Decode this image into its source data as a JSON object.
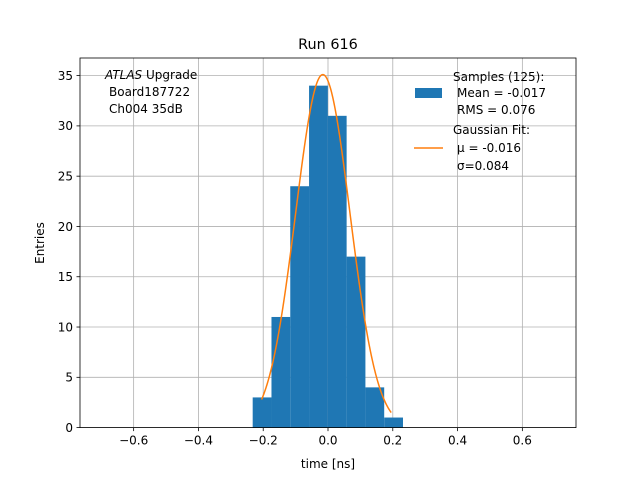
{
  "chart_data": {
    "type": "bar",
    "title": "Run 616",
    "xlabel": "time [ns]",
    "ylabel": "Entries",
    "xlim": [
      -0.7656,
      0.7656
    ],
    "ylim": [
      0,
      36.75
    ],
    "xticks": [
      -0.6,
      -0.4,
      -0.2,
      0.0,
      0.2,
      0.4,
      0.6
    ],
    "xtick_labels": [
      "−0.6",
      "−0.4",
      "−0.2",
      "0.0",
      "0.2",
      "0.4",
      "0.6"
    ],
    "yticks": [
      0,
      5,
      10,
      15,
      20,
      25,
      30,
      35
    ],
    "ytick_labels": [
      "0",
      "5",
      "10",
      "15",
      "20",
      "25",
      "30",
      "35"
    ],
    "grid": true,
    "annotation": {
      "line1_italic": "ATLAS",
      "line1_rest": " Upgrade",
      "line2": "Board187722",
      "line3": "Ch004 35dB"
    },
    "legend": {
      "position": "top-right",
      "samples_lines": [
        "Samples (125):",
        "Mean = -0.017",
        "RMS = 0.076"
      ],
      "fit_lines": [
        "Gaussian Fit:",
        "μ = -0.016",
        "σ=0.084"
      ]
    },
    "histogram": {
      "name": "Samples",
      "color": "#1f77b4",
      "bin_edges": [
        -0.2325,
        -0.1745,
        -0.1165,
        -0.0585,
        -0.0005,
        0.0575,
        0.1155,
        0.1735,
        0.2315
      ],
      "counts": [
        3,
        11,
        24,
        34,
        31,
        17,
        4,
        1
      ]
    },
    "fit": {
      "name": "Gaussian Fit",
      "color": "#ff7f0e",
      "mu": -0.016,
      "sigma": 0.084,
      "amplitude": 35.1,
      "x_range": [
        -0.205,
        0.195
      ]
    }
  }
}
